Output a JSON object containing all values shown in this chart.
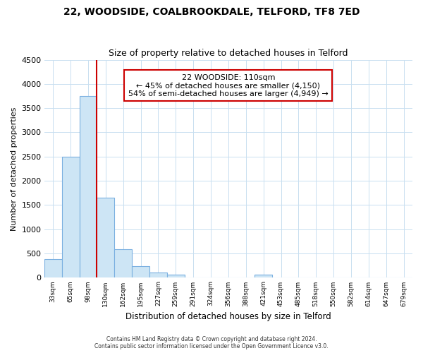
{
  "title1": "22, WOODSIDE, COALBROOKDALE, TELFORD, TF8 7ED",
  "title2": "Size of property relative to detached houses in Telford",
  "xlabel": "Distribution of detached houses by size in Telford",
  "ylabel": "Number of detached properties",
  "annotation_line1": "22 WOODSIDE: 110sqm",
  "annotation_line2": "← 45% of detached houses are smaller (4,150)",
  "annotation_line3": "54% of semi-detached houses are larger (4,949) →",
  "bar_labels": [
    "33sqm",
    "65sqm",
    "98sqm",
    "130sqm",
    "162sqm",
    "195sqm",
    "227sqm",
    "259sqm",
    "291sqm",
    "324sqm",
    "356sqm",
    "388sqm",
    "421sqm",
    "453sqm",
    "485sqm",
    "518sqm",
    "550sqm",
    "582sqm",
    "614sqm",
    "647sqm",
    "679sqm"
  ],
  "bar_values": [
    380,
    2500,
    3750,
    1650,
    580,
    240,
    100,
    60,
    0,
    0,
    0,
    0,
    55,
    0,
    0,
    0,
    0,
    0,
    0,
    0,
    0
  ],
  "bar_fill_color": "#cde5f5",
  "bar_edge_color": "#7aafe0",
  "vline_color": "#cc0000",
  "ylim": [
    0,
    4500
  ],
  "yticks": [
    0,
    500,
    1000,
    1500,
    2000,
    2500,
    3000,
    3500,
    4000,
    4500
  ],
  "background_color": "#ffffff",
  "grid_color": "#c8dff0",
  "footer_line1": "Contains HM Land Registry data © Crown copyright and database right 2024.",
  "footer_line2": "Contains public sector information licensed under the Open Government Licence v3.0.",
  "title1_fontsize": 10,
  "title2_fontsize": 9,
  "annotation_box_fill": "#ffffff",
  "annotation_box_edge": "#cc0000"
}
